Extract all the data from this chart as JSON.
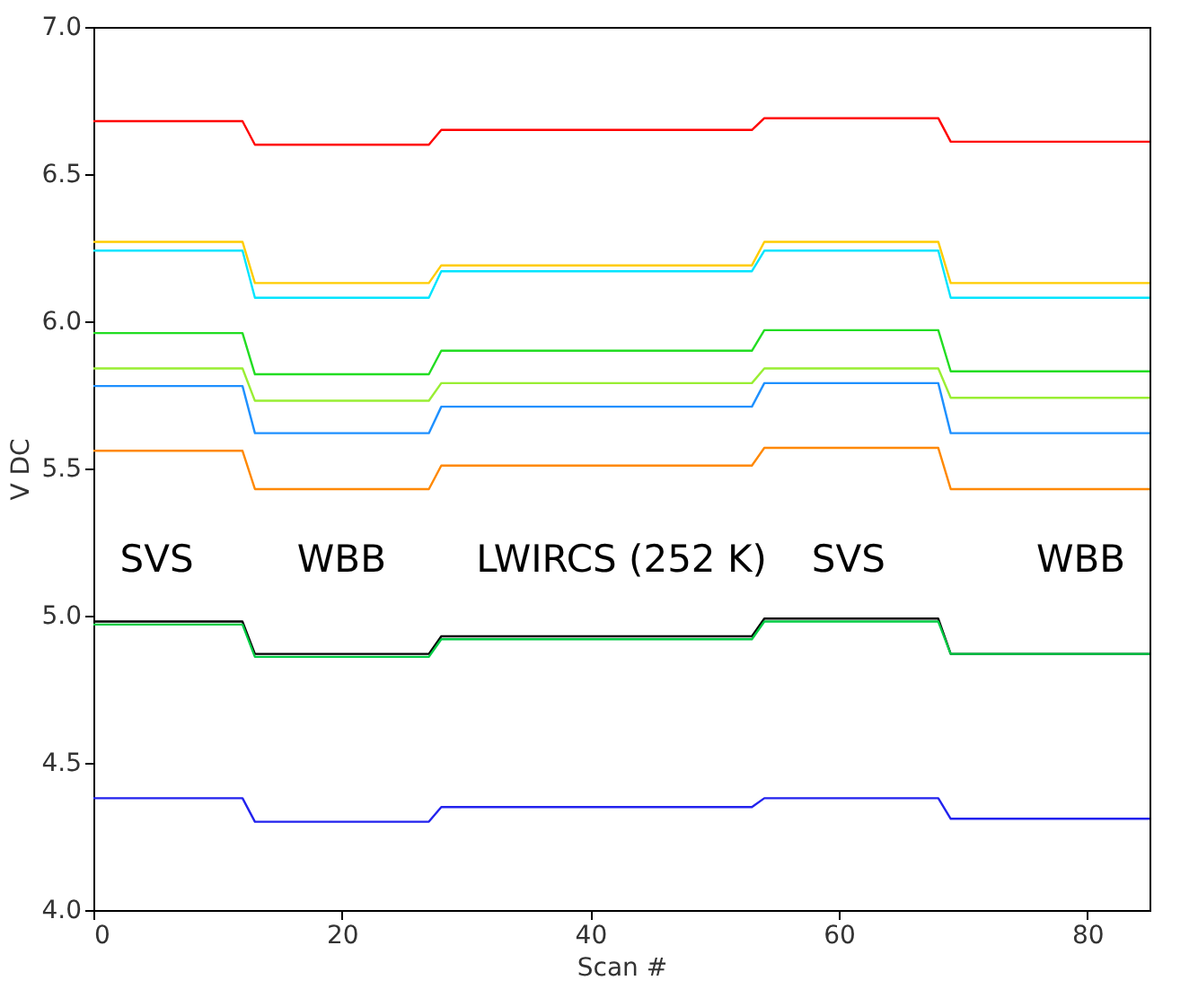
{
  "chart_data": {
    "type": "line",
    "xlabel": "Scan #",
    "ylabel": "V DC",
    "x": [
      0,
      12,
      13,
      27,
      28,
      53,
      54,
      68,
      69,
      85
    ],
    "series": [
      {
        "color": "#ff0000",
        "values": [
          6.68,
          6.68,
          6.6,
          6.6,
          6.65,
          6.65,
          6.69,
          6.69,
          6.61,
          6.61
        ]
      },
      {
        "color": "#ffcc00",
        "values": [
          6.27,
          6.27,
          6.13,
          6.13,
          6.19,
          6.19,
          6.27,
          6.27,
          6.13,
          6.13
        ]
      },
      {
        "color": "#00e5ff",
        "values": [
          6.24,
          6.24,
          6.08,
          6.08,
          6.17,
          6.17,
          6.24,
          6.24,
          6.08,
          6.08
        ]
      },
      {
        "color": "#22dd22",
        "values": [
          5.96,
          5.96,
          5.82,
          5.82,
          5.9,
          5.9,
          5.97,
          5.97,
          5.83,
          5.83
        ]
      },
      {
        "color": "#99ee33",
        "values": [
          5.84,
          5.84,
          5.73,
          5.73,
          5.79,
          5.79,
          5.84,
          5.84,
          5.74,
          5.74
        ]
      },
      {
        "color": "#1e90ff",
        "values": [
          5.78,
          5.78,
          5.62,
          5.62,
          5.71,
          5.71,
          5.79,
          5.79,
          5.62,
          5.62
        ]
      },
      {
        "color": "#ff8800",
        "values": [
          5.56,
          5.56,
          5.43,
          5.43,
          5.51,
          5.51,
          5.57,
          5.57,
          5.43,
          5.43
        ]
      },
      {
        "color": "#000000",
        "values": [
          4.98,
          4.98,
          4.87,
          4.87,
          4.93,
          4.93,
          4.99,
          4.99,
          4.87,
          4.87
        ]
      },
      {
        "color": "#00cc44",
        "values": [
          4.97,
          4.97,
          4.86,
          4.86,
          4.92,
          4.92,
          4.98,
          4.98,
          4.87,
          4.87
        ]
      },
      {
        "color": "#2222ee",
        "values": [
          4.38,
          4.38,
          4.3,
          4.3,
          4.35,
          4.35,
          4.38,
          4.38,
          4.31,
          4.31
        ]
      }
    ],
    "annotations": [
      "SVS",
      "WBB",
      "LWIRCS (252 K)",
      "SVS",
      "WBB"
    ],
    "xlim": [
      0,
      85
    ],
    "xticks": [
      0,
      20,
      40,
      60,
      80
    ],
    "ylim": [
      4,
      7
    ],
    "yticks": [
      {
        "value": 4,
        "label": "4.0"
      },
      4.5,
      {
        "value": 5,
        "label": "5.0"
      },
      5.5,
      {
        "value": 6,
        "label": "6.0"
      },
      6.5,
      {
        "value": 7,
        "label": "7.0"
      }
    ],
    "grid": false,
    "marker": "none",
    "line_style": "solid"
  }
}
